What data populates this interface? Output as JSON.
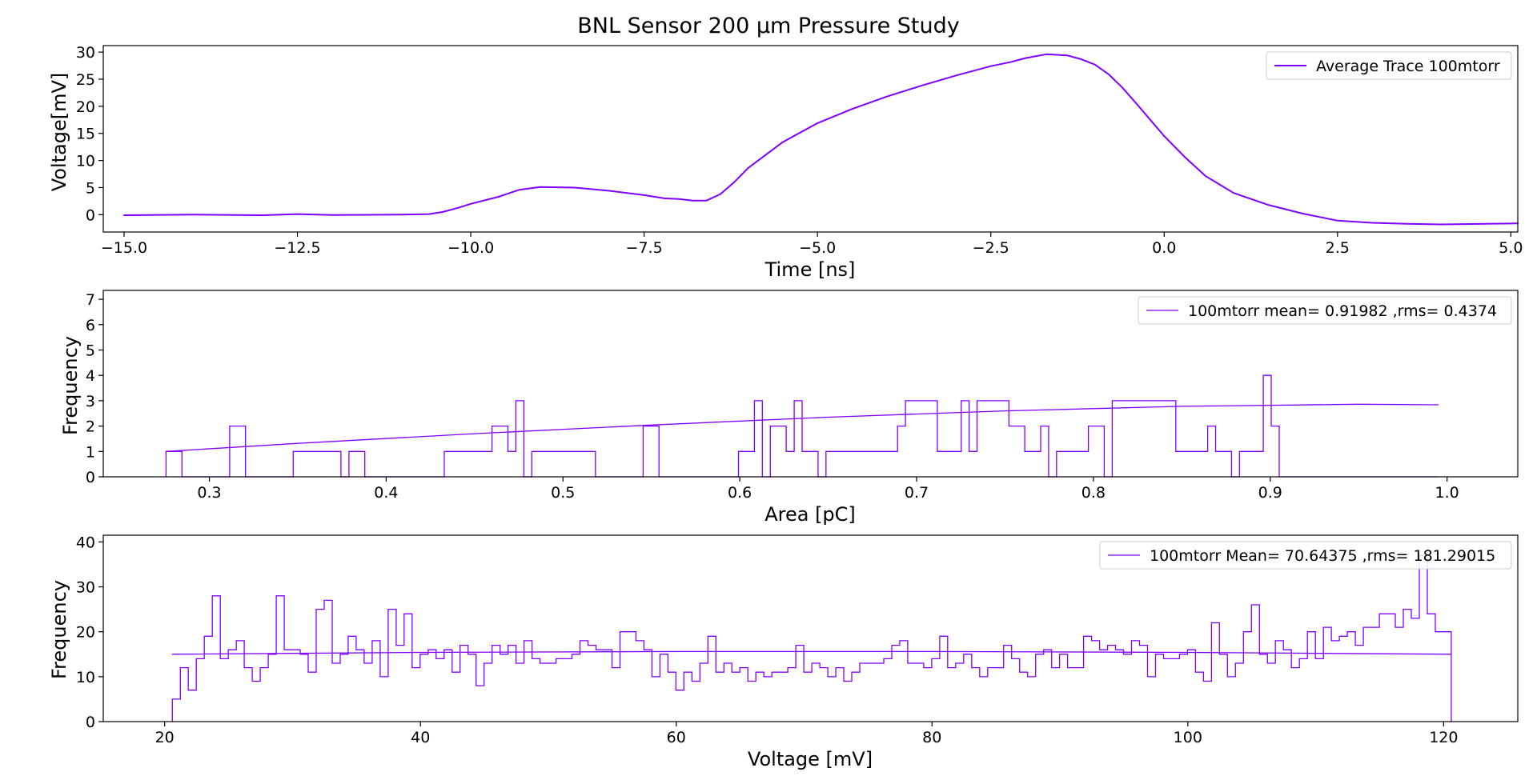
{
  "figure": {
    "title": "BNL Sensor 200 µm Pressure Study"
  },
  "colors": {
    "series": "#8000ff",
    "axes": "#000000",
    "legend_border": "#cccccc",
    "background": "#ffffff"
  },
  "chart_data": [
    {
      "type": "line",
      "xlabel": "Time [ns]",
      "ylabel": "Voltage[mV]",
      "xlim": [
        -15.3,
        5.1
      ],
      "ylim": [
        -3.2,
        31.2
      ],
      "xticks": [
        -15.0,
        -12.5,
        -10.0,
        -7.5,
        -5.0,
        -2.5,
        0.0,
        2.5,
        5.0
      ],
      "xtick_labels": [
        "−15.0",
        "−12.5",
        "−10.0",
        "−7.5",
        "−5.0",
        "−2.5",
        "0.0",
        "2.5",
        "5.0"
      ],
      "yticks": [
        0,
        5,
        10,
        15,
        20,
        25,
        30
      ],
      "ytick_labels": [
        "0",
        "5",
        "10",
        "15",
        "20",
        "25",
        "30"
      ],
      "legend_position": "upper right",
      "series": [
        {
          "name": "Average Trace 100mtorr",
          "x": [
            -15.0,
            -14.0,
            -13.0,
            -12.5,
            -12.0,
            -11.0,
            -10.6,
            -10.4,
            -10.2,
            -10.0,
            -9.6,
            -9.3,
            -9.0,
            -8.5,
            -8.0,
            -7.5,
            -7.2,
            -7.0,
            -6.8,
            -6.6,
            -6.4,
            -6.2,
            -6.0,
            -5.5,
            -5.0,
            -4.5,
            -4.0,
            -3.5,
            -3.0,
            -2.5,
            -2.2,
            -2.0,
            -1.7,
            -1.4,
            -1.2,
            -1.0,
            -0.8,
            -0.6,
            -0.4,
            -0.2,
            0.0,
            0.3,
            0.6,
            1.0,
            1.5,
            2.0,
            2.5,
            3.0,
            3.5,
            4.0,
            5.1
          ],
          "y": [
            -0.1,
            0.0,
            -0.1,
            0.1,
            -0.05,
            0.0,
            0.1,
            0.5,
            1.2,
            2.0,
            3.3,
            4.6,
            5.1,
            5.0,
            4.4,
            3.6,
            3.0,
            2.9,
            2.6,
            2.6,
            3.8,
            6.0,
            8.6,
            13.4,
            16.9,
            19.5,
            21.8,
            23.8,
            25.7,
            27.4,
            28.2,
            28.9,
            29.6,
            29.4,
            28.7,
            27.7,
            25.9,
            23.4,
            20.5,
            17.5,
            14.5,
            10.6,
            7.1,
            4.0,
            1.8,
            0.2,
            -1.1,
            -1.5,
            -1.7,
            -1.8,
            -1.6
          ]
        }
      ]
    },
    {
      "type": "bar",
      "histtype": "step",
      "xlabel": "Area [pC]",
      "ylabel": "Frequency",
      "xlim": [
        0.24,
        1.04
      ],
      "ylim": [
        0,
        7.35
      ],
      "xticks": [
        0.3,
        0.4,
        0.5,
        0.6,
        0.7,
        0.8,
        0.9,
        1.0
      ],
      "xtick_labels": [
        "0.3",
        "0.4",
        "0.5",
        "0.6",
        "0.7",
        "0.8",
        "0.9",
        "1.0"
      ],
      "yticks": [
        0,
        1,
        2,
        3,
        4,
        5,
        6,
        7
      ],
      "ytick_labels": [
        "0",
        "1",
        "2",
        "3",
        "4",
        "5",
        "6",
        "7"
      ],
      "legend_position": "upper right",
      "bins": {
        "start": 0.2755,
        "end": 0.995,
        "count": 160
      },
      "counts": [
        1,
        1,
        0,
        0,
        0,
        0,
        0,
        0,
        2,
        2,
        0,
        0,
        0,
        0,
        0,
        0,
        1,
        1,
        1,
        1,
        1,
        1,
        0,
        1,
        1,
        0,
        0,
        0,
        0,
        0,
        0,
        0,
        0,
        0,
        0,
        1,
        1,
        1,
        1,
        1,
        1,
        2,
        2,
        1,
        3,
        0,
        1,
        1,
        1,
        1,
        1,
        1,
        1,
        1,
        0,
        0,
        0,
        0,
        0,
        0,
        2,
        2,
        0,
        0,
        0,
        0,
        0,
        0,
        0,
        0,
        0,
        0,
        1,
        1,
        3,
        0,
        2,
        2,
        1,
        3,
        1,
        1,
        0,
        1,
        1,
        1,
        1,
        1,
        1,
        1,
        1,
        1,
        2,
        3,
        3,
        3,
        3,
        1,
        1,
        1,
        3,
        1,
        3,
        3,
        3,
        3,
        2,
        2,
        1,
        1,
        2,
        0,
        1,
        1,
        1,
        1,
        2,
        2,
        0,
        3,
        3,
        3,
        3,
        3,
        3,
        3,
        3,
        1,
        1,
        1,
        1,
        2,
        1,
        1,
        0,
        1,
        1,
        1,
        4,
        2,
        0,
        0,
        0,
        0,
        0,
        0,
        0,
        0,
        0,
        0,
        0,
        0,
        0,
        0,
        0,
        0,
        0,
        0,
        0,
        0
      ],
      "series": [
        {
          "name": "100mtorr mean= 0.91982 ,rms= 0.4374",
          "x": [
            0.2755,
            0.35,
            0.45,
            0.55,
            0.65,
            0.75,
            0.85,
            0.95,
            0.995
          ],
          "y": [
            1.0,
            1.32,
            1.7,
            2.04,
            2.35,
            2.6,
            2.78,
            2.86,
            2.84
          ]
        }
      ]
    },
    {
      "type": "bar",
      "histtype": "step",
      "xlabel": "Voltage [mV]",
      "ylabel": "Frequency",
      "xlim": [
        15.2,
        125.8
      ],
      "ylim": [
        0,
        41.5
      ],
      "xticks": [
        20,
        40,
        60,
        80,
        100,
        120
      ],
      "xtick_labels": [
        "20",
        "40",
        "60",
        "80",
        "100",
        "120"
      ],
      "yticks": [
        0,
        10,
        20,
        30,
        40
      ],
      "ytick_labels": [
        "0",
        "10",
        "20",
        "30",
        "40"
      ],
      "legend_position": "upper right",
      "bins": {
        "start": 20.6,
        "end": 120.6,
        "count": 160
      },
      "counts": [
        5,
        12,
        7,
        14,
        19,
        28,
        14,
        16,
        18,
        12,
        9,
        12,
        15,
        28,
        16,
        16,
        15,
        11,
        25,
        27,
        13,
        15,
        19,
        16,
        13,
        18,
        10,
        25,
        17,
        24,
        12,
        15,
        16,
        14,
        16,
        11,
        17,
        15,
        8,
        13,
        17,
        15,
        17,
        13,
        18,
        14,
        13,
        13,
        14,
        14,
        15,
        18,
        17,
        16,
        16,
        12,
        20,
        20,
        18,
        16,
        10,
        15,
        11,
        7,
        11,
        9,
        13,
        19,
        11,
        13,
        11,
        12,
        9,
        11,
        10,
        11,
        11,
        12,
        17,
        11,
        13,
        12,
        10,
        12,
        9,
        11,
        13,
        13,
        13,
        14,
        17,
        18,
        13,
        13,
        12,
        14,
        19,
        12,
        13,
        15,
        12,
        10,
        12,
        12,
        17,
        14,
        11,
        10,
        15,
        16,
        12,
        15,
        12,
        12,
        19,
        18,
        16,
        17,
        16,
        15,
        18,
        17,
        10,
        15,
        14,
        14,
        15,
        16,
        11,
        9,
        22,
        15,
        10,
        13,
        20,
        26,
        15,
        13,
        18,
        16,
        12,
        14,
        20,
        14,
        21,
        18,
        19,
        20,
        17,
        21,
        21,
        24,
        24,
        21,
        25,
        23,
        37,
        24,
        20,
        20
      ],
      "series": [
        {
          "name": "100mtorr Mean= 70.64375 ,rms= 181.29015",
          "x": [
            20.6,
            40,
            60,
            80,
            100,
            120.6
          ],
          "y": [
            15.0,
            15.4,
            15.6,
            15.6,
            15.4,
            15.0
          ]
        }
      ]
    }
  ]
}
